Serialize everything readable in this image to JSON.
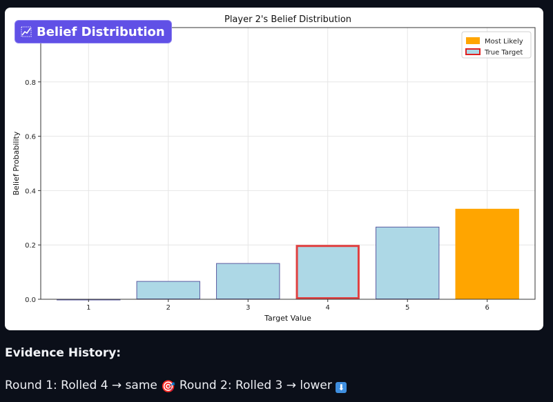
{
  "badge": {
    "label": "Belief Distribution",
    "icon": "chart-icon"
  },
  "chart_data": {
    "type": "bar",
    "title": "Player 2's Belief Distribution",
    "xlabel": "Target Value",
    "ylabel": "Belief Probability",
    "categories": [
      "1",
      "2",
      "3",
      "4",
      "5",
      "6"
    ],
    "values": [
      0.0,
      0.067,
      0.133,
      0.2,
      0.267,
      0.333
    ],
    "ylim": [
      0,
      1.0
    ],
    "yticks": [
      0.0,
      0.2,
      0.4,
      0.6,
      0.8
    ],
    "ytick_labels": [
      "0.0",
      "0.2",
      "0.4",
      "0.6",
      "0.8"
    ],
    "grid": true,
    "legend": {
      "placement": "top-right",
      "entries": [
        {
          "label": "Most Likely",
          "color": "#ffa500"
        },
        {
          "label": "True Target",
          "color": "#add8e6",
          "edge": "#e02020"
        }
      ]
    },
    "most_likely_category": "6",
    "true_target_category": "4",
    "colors": {
      "bar": "#add8e6",
      "bar_edge": "#5a5aa0",
      "most_likely": "#ffa500",
      "true_target_edge": "#e04040"
    }
  },
  "evidence": {
    "title": "Evidence History:",
    "round1_text": "Round 1: Rolled 4 → same",
    "round1_icon": "🎯",
    "round2_text": "Round 2: Rolled 3 → lower",
    "round2_icon": "⬇"
  }
}
